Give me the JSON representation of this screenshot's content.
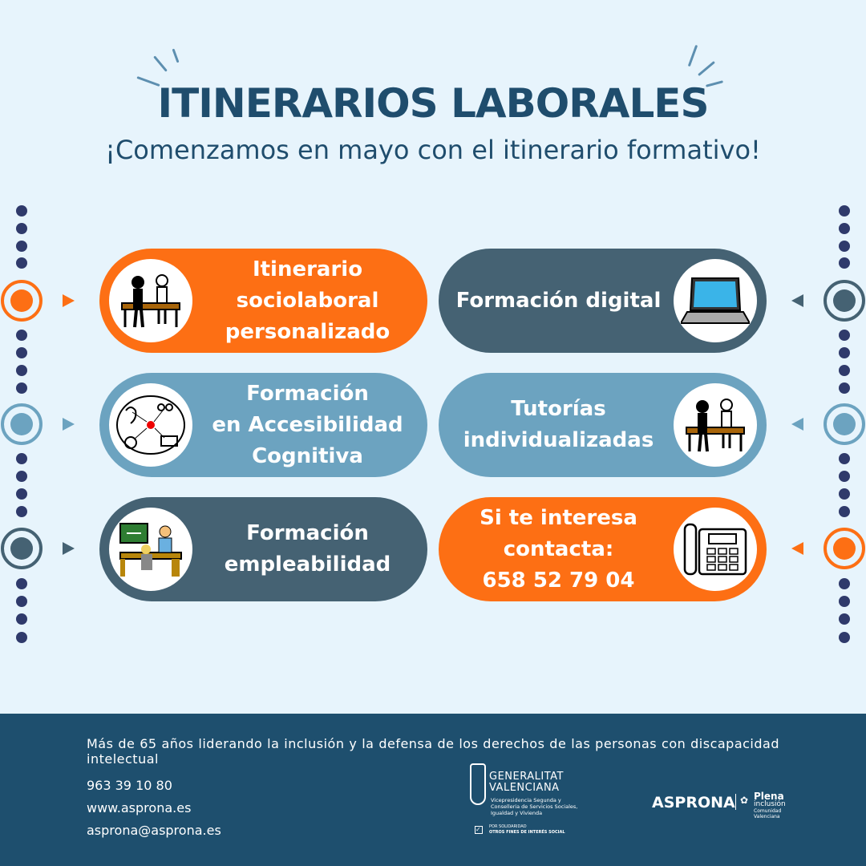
{
  "header": {
    "title": "ITINERARIOS LABORALES",
    "subtitle": "¡Comenzamos en mayo con el itinerario formativo!"
  },
  "colors": {
    "orange": "#fd6f14",
    "slate": "#456273",
    "light_blue": "#6ca3c0",
    "background": "#e7f4fc",
    "footer": "#1e4f6e",
    "dots": "#2f3a6b"
  },
  "cards": [
    {
      "label": "Itinerario\nsociolaboral\npersonalizado",
      "icon": "meeting-desk-icon",
      "color": "orange"
    },
    {
      "label": "Formación digital",
      "icon": "laptop-icon",
      "color": "slate"
    },
    {
      "label": "Formación\nen  Accesibilidad\nCognitiva",
      "icon": "cognitive-accessibility-icon",
      "color": "light_blue"
    },
    {
      "label": "Tutorías\nindividualizadas",
      "icon": "tutoring-desk-icon",
      "color": "light_blue"
    },
    {
      "label": "Formación\nempleabilidad",
      "icon": "office-worker-icon",
      "color": "slate"
    },
    {
      "label": "Si te interesa\ncontacta:\n658 52 79 04",
      "icon": "telephone-icon",
      "color": "orange"
    }
  ],
  "footer": {
    "tagline": "Más de 65 años liderando la inclusión y la defensa de los derechos de las personas con discapacidad intelectual",
    "phone": "963 39 10 80",
    "web": "www.asprona.es",
    "email": "asprona@asprona.es",
    "gv": {
      "name1": "GENERALITAT",
      "name2": "VALENCIANA",
      "dept": "Vicepresidencia Segunda y Conselleria de Servicios Sociales, Igualdad y Vivienda",
      "tag1": "POR SOLIDARIDAD",
      "tag2": "OTROS FINES DE INTERÉS SOCIAL"
    },
    "asprona": {
      "name": "ASPRONA",
      "plena": "Plena",
      "inclusion": "inclusión",
      "region": "Comunidad Valenciana"
    }
  }
}
